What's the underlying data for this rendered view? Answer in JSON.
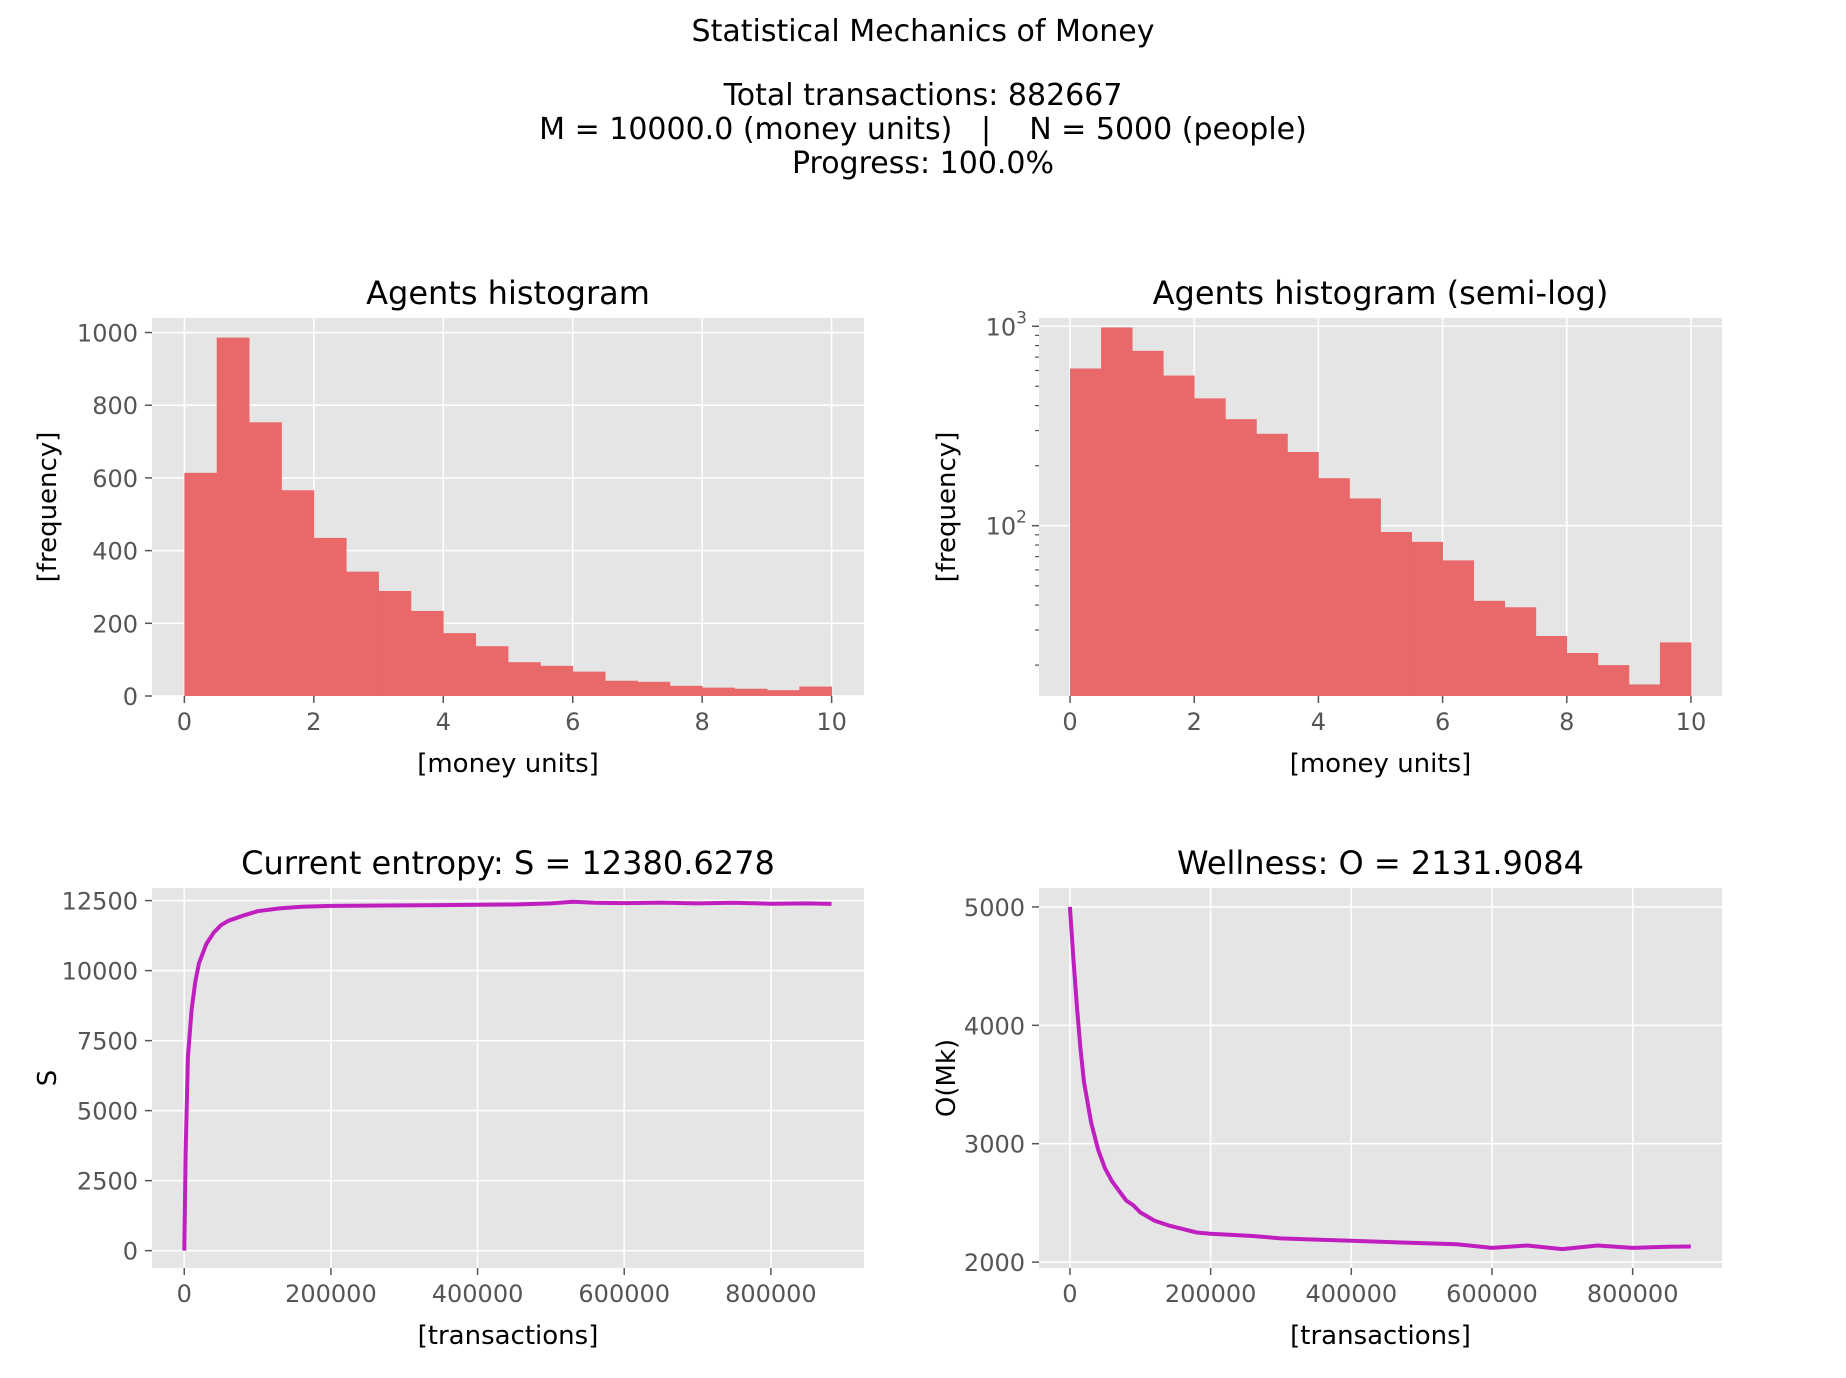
{
  "figure": {
    "title": "Statistical Mechanics of Money",
    "subtitle_lines": [
      "Total transactions: 882667",
      "M = 10000.0 (money units)   |    N = 5000 (people)",
      "Progress: 100.0%"
    ]
  },
  "colors": {
    "plot_bg": "#e5e5e5",
    "grid": "#ffffff",
    "bar": "#e9686a",
    "line": "#bf1fbf",
    "tick_text": "#555555"
  },
  "chart_data": [
    {
      "type": "bar",
      "title": "Agents histogram",
      "xlabel": "[money units]",
      "ylabel": "[frequency]",
      "xlim": [
        -0.5,
        10.5
      ],
      "ylim": [
        0,
        1040
      ],
      "xticks": [
        0,
        2,
        4,
        6,
        8,
        10
      ],
      "yticks": [
        0,
        200,
        400,
        600,
        800,
        1000
      ],
      "bin_edges": [
        0,
        0.5,
        1.0,
        1.5,
        2.0,
        2.5,
        3.0,
        3.5,
        4.0,
        4.5,
        5.0,
        5.5,
        6.0,
        6.5,
        7.0,
        7.5,
        8.0,
        8.5,
        9.0,
        9.5,
        10.0
      ],
      "values": [
        614,
        986,
        753,
        566,
        435,
        342,
        289,
        234,
        173,
        137,
        93,
        83,
        67,
        42,
        39,
        28,
        23,
        20,
        16,
        26
      ],
      "grid": true
    },
    {
      "type": "bar",
      "title": "Agents histogram (semi-log)",
      "xlabel": "[money units]",
      "ylabel": "[frequency]",
      "yscale": "log",
      "xlim": [
        -0.5,
        10.5
      ],
      "ylim": [
        14,
        1100
      ],
      "xticks": [
        0,
        2,
        4,
        6,
        8,
        10
      ],
      "yticks": [
        100,
        1000
      ],
      "ytick_labels": [
        "10^2",
        "10^3"
      ],
      "bin_edges": [
        0,
        0.5,
        1.0,
        1.5,
        2.0,
        2.5,
        3.0,
        3.5,
        4.0,
        4.5,
        5.0,
        5.5,
        6.0,
        6.5,
        7.0,
        7.5,
        8.0,
        8.5,
        9.0,
        9.5,
        10.0
      ],
      "values": [
        614,
        986,
        753,
        566,
        435,
        342,
        289,
        234,
        173,
        137,
        93,
        83,
        67,
        42,
        39,
        28,
        23,
        20,
        16,
        26
      ],
      "grid": true
    },
    {
      "type": "line",
      "title": "Current entropy: S = 12380.6278",
      "xlabel": "[transactions]",
      "ylabel": "S",
      "xlim": [
        -44000,
        927000
      ],
      "ylim": [
        -620,
        12950
      ],
      "xticks": [
        0,
        200000,
        400000,
        600000,
        800000
      ],
      "yticks": [
        0,
        2500,
        5000,
        7500,
        10000,
        12500
      ],
      "x": [
        0,
        2000,
        5000,
        10000,
        15000,
        20000,
        30000,
        40000,
        50000,
        60000,
        80000,
        100000,
        130000,
        160000,
        200000,
        250000,
        300000,
        350000,
        400000,
        450000,
        500000,
        530000,
        560000,
        600000,
        650000,
        700000,
        750000,
        800000,
        850000,
        882667
      ],
      "y": [
        0,
        3600,
        6900,
        8600,
        9600,
        10250,
        10950,
        11350,
        11620,
        11780,
        11960,
        12120,
        12220,
        12280,
        12310,
        12320,
        12330,
        12340,
        12350,
        12360,
        12400,
        12460,
        12420,
        12410,
        12430,
        12400,
        12420,
        12390,
        12400,
        12380.6278
      ],
      "grid": true
    },
    {
      "type": "line",
      "title": "Wellness: O = 2131.9084",
      "xlabel": "[transactions]",
      "ylabel": "O(Mk)",
      "xlim": [
        -44000,
        927000
      ],
      "ylim": [
        1950,
        5160
      ],
      "xticks": [
        0,
        200000,
        400000,
        600000,
        800000
      ],
      "yticks": [
        2000,
        3000,
        4000,
        5000
      ],
      "x": [
        0,
        5000,
        10000,
        15000,
        20000,
        30000,
        40000,
        50000,
        60000,
        70000,
        80000,
        90000,
        100000,
        120000,
        140000,
        160000,
        180000,
        200000,
        230000,
        260000,
        300000,
        350000,
        400000,
        450000,
        500000,
        550000,
        600000,
        650000,
        700000,
        750000,
        800000,
        850000,
        882667
      ],
      "y": [
        5000,
        4550,
        4150,
        3800,
        3520,
        3180,
        2950,
        2790,
        2680,
        2600,
        2520,
        2480,
        2420,
        2350,
        2310,
        2280,
        2250,
        2240,
        2230,
        2220,
        2200,
        2190,
        2180,
        2170,
        2160,
        2150,
        2120,
        2140,
        2110,
        2140,
        2120,
        2130,
        2131.9084
      ],
      "grid": true
    }
  ]
}
